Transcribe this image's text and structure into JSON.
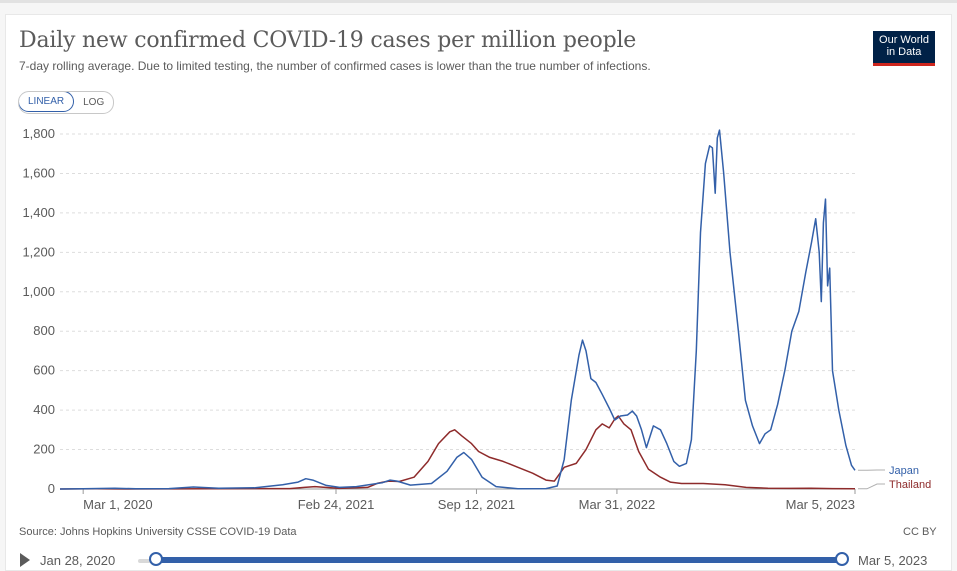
{
  "header": {
    "title": "Daily new confirmed COVID-19 cases per million people",
    "subtitle": "7-day rolling average. Due to limited testing, the number of confirmed cases is lower than the true number of infections.",
    "logo_line1": "Our World",
    "logo_line2": "in Data"
  },
  "controls": {
    "linear_label": "LINEAR",
    "log_label": "LOG",
    "active_scale": "LINEAR"
  },
  "footer": {
    "source": "Source: Johns Hopkins University CSSE COVID-19 Data",
    "license": "CC BY"
  },
  "timeline": {
    "start_label": "Jan 28, 2020",
    "end_label": "Mar 5, 2023"
  },
  "colors": {
    "japan": "#3360a9",
    "thailand": "#8e2b2b",
    "grid": "#dddddd",
    "axis": "#5b5b5b"
  },
  "chart_data": {
    "type": "line",
    "title": "Daily new confirmed COVID-19 cases per million people",
    "xlabel": "",
    "ylabel": "",
    "ylim": [
      0,
      1800
    ],
    "yticks": [
      0,
      200,
      400,
      600,
      800,
      1000,
      1200,
      1400,
      1600,
      1800
    ],
    "ytick_labels": [
      "0",
      "200",
      "400",
      "600",
      "800",
      "1,000",
      "1,200",
      "1,400",
      "1,600",
      "1,800"
    ],
    "x_range": [
      "2020-01-28",
      "2023-03-05"
    ],
    "xticks": [
      {
        "date": "2020-03-01",
        "label": "Mar 1, 2020"
      },
      {
        "date": "2021-02-24",
        "label": "Feb 24, 2021"
      },
      {
        "date": "2021-09-12",
        "label": "Sep 12, 2021"
      },
      {
        "date": "2022-03-31",
        "label": "Mar 31, 2022"
      },
      {
        "date": "2023-03-05",
        "label": "Mar 5, 2023"
      }
    ],
    "grid": true,
    "series": [
      {
        "name": "Japan",
        "color": "#3360a9",
        "points": [
          [
            "2020-01-28",
            0
          ],
          [
            "2020-03-01",
            1
          ],
          [
            "2020-04-15",
            4
          ],
          [
            "2020-05-15",
            1
          ],
          [
            "2020-07-01",
            2
          ],
          [
            "2020-08-05",
            10
          ],
          [
            "2020-09-10",
            4
          ],
          [
            "2020-11-01",
            6
          ],
          [
            "2020-12-10",
            22
          ],
          [
            "2021-01-01",
            35
          ],
          [
            "2021-01-12",
            52
          ],
          [
            "2021-01-22",
            45
          ],
          [
            "2021-02-10",
            18
          ],
          [
            "2021-03-01",
            8
          ],
          [
            "2021-03-25",
            12
          ],
          [
            "2021-05-01",
            32
          ],
          [
            "2021-05-12",
            45
          ],
          [
            "2021-05-22",
            40
          ],
          [
            "2021-06-10",
            20
          ],
          [
            "2021-07-10",
            28
          ],
          [
            "2021-08-01",
            90
          ],
          [
            "2021-08-15",
            160
          ],
          [
            "2021-08-25",
            185
          ],
          [
            "2021-09-05",
            150
          ],
          [
            "2021-09-20",
            60
          ],
          [
            "2021-10-10",
            12
          ],
          [
            "2021-11-10",
            1
          ],
          [
            "2021-12-20",
            2
          ],
          [
            "2022-01-05",
            15
          ],
          [
            "2022-01-15",
            150
          ],
          [
            "2022-01-25",
            450
          ],
          [
            "2022-02-05",
            680
          ],
          [
            "2022-02-10",
            755
          ],
          [
            "2022-02-15",
            700
          ],
          [
            "2022-02-22",
            560
          ],
          [
            "2022-03-01",
            540
          ],
          [
            "2022-03-10",
            480
          ],
          [
            "2022-03-20",
            410
          ],
          [
            "2022-03-28",
            350
          ],
          [
            "2022-04-05",
            370
          ],
          [
            "2022-04-15",
            375
          ],
          [
            "2022-04-22",
            395
          ],
          [
            "2022-04-28",
            370
          ],
          [
            "2022-05-05",
            300
          ],
          [
            "2022-05-12",
            210
          ],
          [
            "2022-05-22",
            320
          ],
          [
            "2022-06-01",
            300
          ],
          [
            "2022-06-10",
            230
          ],
          [
            "2022-06-20",
            140
          ],
          [
            "2022-06-28",
            115
          ],
          [
            "2022-07-08",
            130
          ],
          [
            "2022-07-15",
            250
          ],
          [
            "2022-07-22",
            700
          ],
          [
            "2022-07-28",
            1300
          ],
          [
            "2022-08-04",
            1650
          ],
          [
            "2022-08-10",
            1740
          ],
          [
            "2022-08-14",
            1730
          ],
          [
            "2022-08-18",
            1500
          ],
          [
            "2022-08-21",
            1780
          ],
          [
            "2022-08-24",
            1820
          ],
          [
            "2022-08-30",
            1600
          ],
          [
            "2022-09-08",
            1200
          ],
          [
            "2022-09-20",
            800
          ],
          [
            "2022-09-30",
            450
          ],
          [
            "2022-10-10",
            320
          ],
          [
            "2022-10-20",
            230
          ],
          [
            "2022-10-28",
            280
          ],
          [
            "2022-11-05",
            300
          ],
          [
            "2022-11-15",
            430
          ],
          [
            "2022-11-25",
            600
          ],
          [
            "2022-12-05",
            800
          ],
          [
            "2022-12-15",
            900
          ],
          [
            "2022-12-25",
            1100
          ],
          [
            "2023-01-02",
            1250
          ],
          [
            "2023-01-08",
            1370
          ],
          [
            "2023-01-13",
            1200
          ],
          [
            "2023-01-16",
            950
          ],
          [
            "2023-01-19",
            1350
          ],
          [
            "2023-01-22",
            1470
          ],
          [
            "2023-01-25",
            1030
          ],
          [
            "2023-01-28",
            1120
          ],
          [
            "2023-02-01",
            600
          ],
          [
            "2023-02-10",
            400
          ],
          [
            "2023-02-20",
            220
          ],
          [
            "2023-02-28",
            120
          ],
          [
            "2023-03-05",
            95
          ]
        ]
      },
      {
        "name": "Thailand",
        "color": "#8e2b2b",
        "points": [
          [
            "2020-01-28",
            0
          ],
          [
            "2020-03-20",
            1
          ],
          [
            "2020-05-01",
            0
          ],
          [
            "2020-12-20",
            2
          ],
          [
            "2021-01-10",
            8
          ],
          [
            "2021-01-25",
            12
          ],
          [
            "2021-03-01",
            3
          ],
          [
            "2021-04-10",
            8
          ],
          [
            "2021-04-25",
            30
          ],
          [
            "2021-05-10",
            40
          ],
          [
            "2021-05-25",
            38
          ],
          [
            "2021-06-15",
            60
          ],
          [
            "2021-07-05",
            140
          ],
          [
            "2021-07-20",
            230
          ],
          [
            "2021-08-05",
            290
          ],
          [
            "2021-08-12",
            300
          ],
          [
            "2021-08-22",
            270
          ],
          [
            "2021-09-05",
            230
          ],
          [
            "2021-09-15",
            190
          ],
          [
            "2021-10-01",
            160
          ],
          [
            "2021-10-20",
            140
          ],
          [
            "2021-11-10",
            110
          ],
          [
            "2021-12-01",
            80
          ],
          [
            "2021-12-20",
            45
          ],
          [
            "2022-01-01",
            40
          ],
          [
            "2022-01-15",
            110
          ],
          [
            "2022-02-01",
            130
          ],
          [
            "2022-02-15",
            200
          ],
          [
            "2022-03-01",
            300
          ],
          [
            "2022-03-10",
            330
          ],
          [
            "2022-03-20",
            310
          ],
          [
            "2022-03-28",
            355
          ],
          [
            "2022-04-02",
            370
          ],
          [
            "2022-04-10",
            330
          ],
          [
            "2022-04-20",
            300
          ],
          [
            "2022-05-01",
            190
          ],
          [
            "2022-05-15",
            100
          ],
          [
            "2022-06-01",
            60
          ],
          [
            "2022-06-15",
            35
          ],
          [
            "2022-07-01",
            28
          ],
          [
            "2022-08-01",
            28
          ],
          [
            "2022-09-01",
            22
          ],
          [
            "2022-10-01",
            8
          ],
          [
            "2022-11-01",
            4
          ],
          [
            "2022-12-01",
            3
          ],
          [
            "2023-01-01",
            4
          ],
          [
            "2023-02-01",
            2
          ],
          [
            "2023-03-05",
            1
          ]
        ]
      }
    ]
  }
}
